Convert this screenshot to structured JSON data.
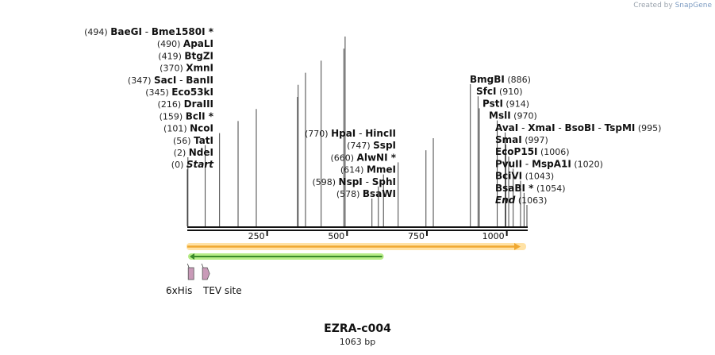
{
  "credit": {
    "prefix": "Created by",
    "brand": "SnapGene"
  },
  "title": "EZRA-c004",
  "length_label": "1063 bp",
  "sequence_length": 1063,
  "ruler": {
    "ticks": [
      "250",
      "500",
      "750",
      "1000"
    ]
  },
  "sites": [
    {
      "pos": "(494)",
      "parts": [
        {
          "name": "BaeGI"
        },
        {
          "name": "Bme1580I *"
        }
      ],
      "cut": 494,
      "side": "left"
    },
    {
      "pos": "(490)",
      "parts": [
        {
          "name": "ApaLI"
        }
      ],
      "cut": 490,
      "side": "left"
    },
    {
      "pos": "(419)",
      "parts": [
        {
          "name": "BtgZI"
        }
      ],
      "cut": 419,
      "side": "left"
    },
    {
      "pos": "(370)",
      "parts": [
        {
          "name": "XmnI"
        }
      ],
      "cut": 370,
      "side": "left"
    },
    {
      "pos": "(347)",
      "parts": [
        {
          "name": "SacI"
        },
        {
          "name": "BanII"
        }
      ],
      "cut": 347,
      "side": "left"
    },
    {
      "pos": "(345)",
      "parts": [
        {
          "name": "Eco53kI"
        }
      ],
      "cut": 345,
      "side": "left"
    },
    {
      "pos": "(216)",
      "parts": [
        {
          "name": "DraIII"
        }
      ],
      "cut": 216,
      "side": "left"
    },
    {
      "pos": "(159)",
      "parts": [
        {
          "name": "BclI *"
        }
      ],
      "cut": 159,
      "side": "left"
    },
    {
      "pos": "(101)",
      "parts": [
        {
          "name": "NcoI"
        }
      ],
      "cut": 101,
      "side": "left"
    },
    {
      "pos": "(56)",
      "parts": [
        {
          "name": "TatI"
        }
      ],
      "cut": 56,
      "side": "left"
    },
    {
      "pos": "(2)",
      "parts": [
        {
          "name": "NdeI"
        }
      ],
      "cut": 2,
      "side": "left"
    },
    {
      "pos": "(0)",
      "parts": [
        {
          "name": "Start",
          "italic": true
        }
      ],
      "cut": 0,
      "side": "left"
    },
    {
      "pos": "(770)",
      "parts": [
        {
          "name": "HpaI"
        },
        {
          "name": "HincII"
        }
      ],
      "cut": 770,
      "side": "left"
    },
    {
      "pos": "(747)",
      "parts": [
        {
          "name": "SspI"
        }
      ],
      "cut": 747,
      "side": "left"
    },
    {
      "pos": "(660)",
      "parts": [
        {
          "name": "AlwNI *"
        }
      ],
      "cut": 660,
      "side": "left"
    },
    {
      "pos": "(614)",
      "parts": [
        {
          "name": "MmeI"
        }
      ],
      "cut": 614,
      "side": "left"
    },
    {
      "pos": "(598)",
      "parts": [
        {
          "name": "NspI"
        },
        {
          "name": "SphI"
        }
      ],
      "cut": 598,
      "side": "left"
    },
    {
      "pos": "(578)",
      "parts": [
        {
          "name": "BsaWI"
        }
      ],
      "cut": 578,
      "side": "left"
    },
    {
      "pos": "(886)",
      "parts": [
        {
          "name": "BmgBI"
        }
      ],
      "cut": 886,
      "side": "right"
    },
    {
      "pos": "(910)",
      "parts": [
        {
          "name": "SfcI"
        }
      ],
      "cut": 910,
      "side": "right"
    },
    {
      "pos": "(914)",
      "parts": [
        {
          "name": "PstI"
        }
      ],
      "cut": 914,
      "side": "right"
    },
    {
      "pos": "(970)",
      "parts": [
        {
          "name": "MslI"
        }
      ],
      "cut": 970,
      "side": "right"
    },
    {
      "pos": "(995)",
      "parts": [
        {
          "name": "AvaI"
        },
        {
          "name": "XmaI"
        },
        {
          "name": "BsoBI"
        },
        {
          "name": "TspMI"
        }
      ],
      "cut": 995,
      "side": "right"
    },
    {
      "pos": "(997)",
      "parts": [
        {
          "name": "SmaI"
        }
      ],
      "cut": 997,
      "side": "right"
    },
    {
      "pos": "(1006)",
      "parts": [
        {
          "name": "EcoP15I"
        }
      ],
      "cut": 1006,
      "side": "right"
    },
    {
      "pos": "(1020)",
      "parts": [
        {
          "name": "PvuII"
        },
        {
          "name": "MspA1I"
        }
      ],
      "cut": 1020,
      "side": "right"
    },
    {
      "pos": "(1043)",
      "parts": [
        {
          "name": "BciVI"
        }
      ],
      "cut": 1043,
      "side": "right"
    },
    {
      "pos": "(1054)",
      "parts": [
        {
          "name": "BsaBI *"
        }
      ],
      "cut": 1054,
      "side": "right"
    },
    {
      "pos": "(1063)",
      "parts": [
        {
          "name": "End",
          "italic": true
        }
      ],
      "cut": 1063,
      "side": "right"
    }
  ],
  "features": {
    "orange_arrow": {
      "start": 0,
      "end": 1063,
      "direction": "forward",
      "color": "#f0a830",
      "glow": "#ffe2a6"
    },
    "green_arrow": {
      "start": 0,
      "end": 610,
      "direction": "reverse",
      "color": "#3a8a2a",
      "glow": "#b7ec87"
    },
    "his_tag": {
      "label": "6xHis",
      "start": 3,
      "end": 20,
      "color": "#c99ab8"
    },
    "tev_site": {
      "label": "TEV site",
      "start": 50,
      "end": 70,
      "color": "#c99ab8"
    }
  }
}
